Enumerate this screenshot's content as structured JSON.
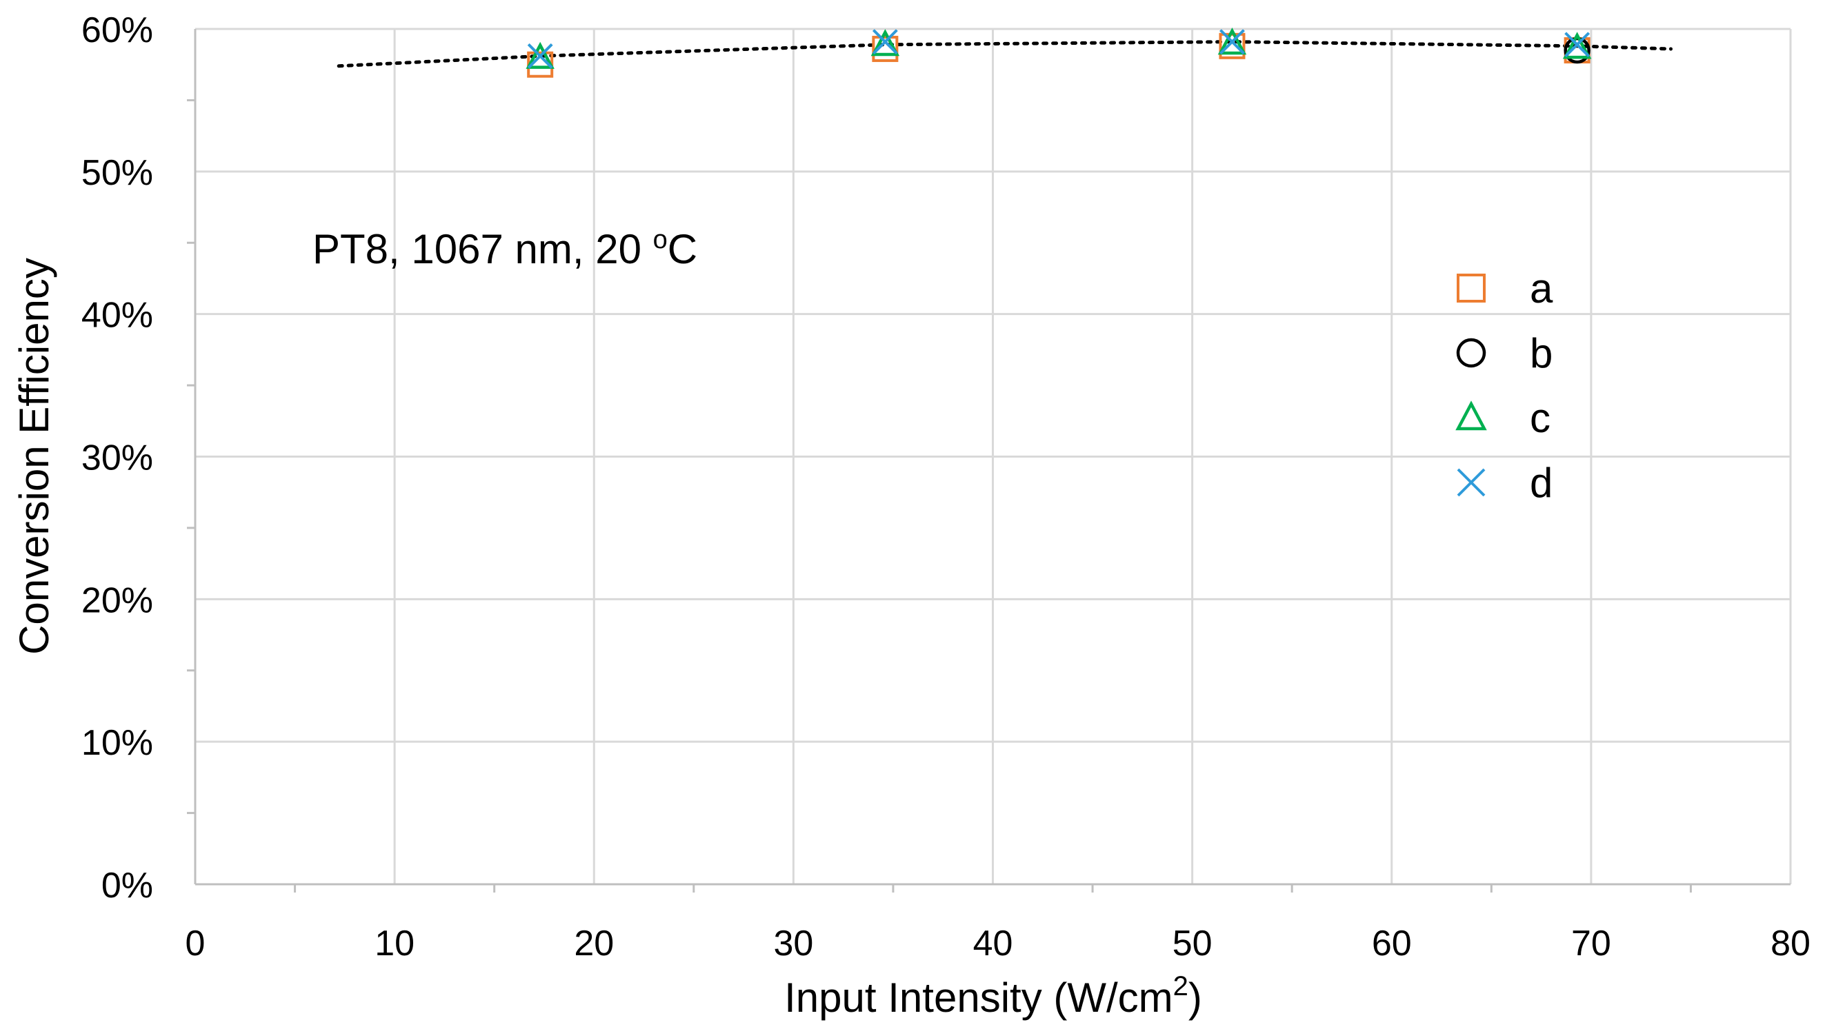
{
  "chart_data": {
    "type": "scatter",
    "xlabel": "Input Intensity (W/cm",
    "xlabel_sup": "2",
    "xlabel_end": ")",
    "ylabel": "Conversion Efficiency",
    "xlim": [
      0,
      80
    ],
    "ylim": [
      0,
      0.6
    ],
    "x_ticks": [
      "0",
      "10",
      "20",
      "30",
      "40",
      "50",
      "60",
      "70",
      "80"
    ],
    "y_ticks": [
      "0%",
      "10%",
      "20%",
      "30%",
      "40%",
      "50%",
      "60%"
    ],
    "grid": true,
    "legend_position": "right",
    "annotation": {
      "text": "PT8, 1067 nm, 20 ",
      "sup": "o",
      "end": "C"
    },
    "series": [
      {
        "name": "a",
        "marker": "square",
        "color": "#ED7D31",
        "x": [
          17.3,
          34.6,
          52.0,
          69.3
        ],
        "y": [
          0.575,
          0.586,
          0.588,
          0.585
        ]
      },
      {
        "name": "b",
        "marker": "circle",
        "color": "#000000",
        "x": [
          69.3
        ],
        "y": [
          0.585
        ]
      },
      {
        "name": "c",
        "marker": "triangle",
        "color": "#00B050",
        "x": [
          17.3,
          34.6,
          52.0,
          69.3
        ],
        "y": [
          0.58,
          0.589,
          0.59,
          0.587
        ]
      },
      {
        "name": "d",
        "marker": "x",
        "color": "#2E9BDA",
        "x": [
          17.3,
          34.6,
          52.0,
          69.3
        ],
        "y": [
          0.581,
          0.591,
          0.591,
          0.589
        ]
      }
    ],
    "trendline": {
      "style": "dotted",
      "color": "#000000",
      "x": [
        7.2,
        17.3,
        34.6,
        52.0,
        69.3,
        74.0
      ],
      "y": [
        0.574,
        0.581,
        0.589,
        0.591,
        0.588,
        0.586
      ]
    }
  }
}
